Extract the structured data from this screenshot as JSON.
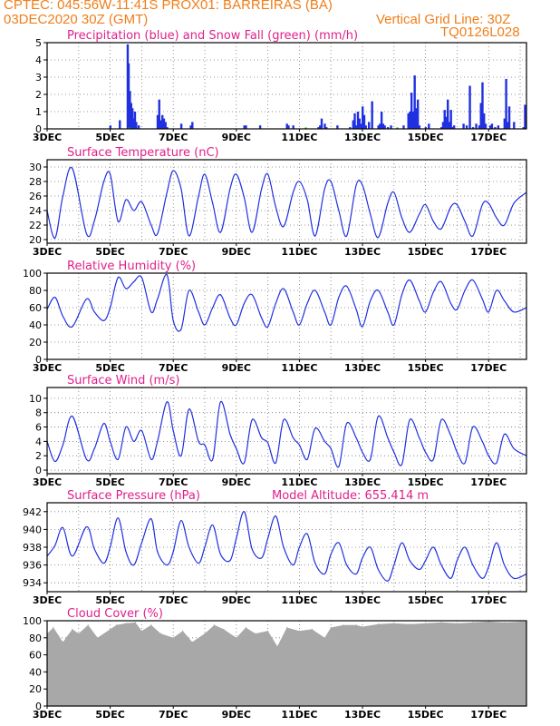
{
  "header": {
    "line1": "CPTEC:   045:56W-11:41S   PROX01: BARREIRAS (BA)",
    "line2": "03DEC2020 30Z (GMT)",
    "grid_note": "Vertical Grid Line: 30Z",
    "code": "TQ0126L028",
    "colors": {
      "header": "#f07e1a",
      "title": "#e0208a",
      "line": "#2030e0",
      "cloud": "#a8a8a8",
      "snow": "#10b010"
    }
  },
  "x_axis": {
    "start_day": 3,
    "end_day": 18.2,
    "grid_days": [
      3,
      4,
      5,
      6,
      7,
      8,
      9,
      10,
      11,
      12,
      13,
      14,
      15,
      16,
      17,
      18
    ],
    "tick_labels": [
      {
        "day": 3,
        "label": "3DEC"
      },
      {
        "day": 5,
        "label": "5DEC"
      },
      {
        "day": 7,
        "label": "7DEC"
      },
      {
        "day": 9,
        "label": "9DEC"
      },
      {
        "day": 11,
        "label": "11DEC"
      },
      {
        "day": 13,
        "label": "13DEC"
      },
      {
        "day": 15,
        "label": "15DEC"
      },
      {
        "day": 17,
        "label": "17DEC"
      }
    ]
  },
  "chart_data": [
    {
      "type": "bar",
      "title": "Precipitation (blue) and Snow Fall (green) (mm/h)",
      "ylim": [
        0,
        5
      ],
      "yticks": [
        "0",
        "1",
        "2",
        "3",
        "4",
        "5"
      ],
      "series": [
        {
          "name": "Precipitation",
          "x": [
            5.0,
            5.3,
            5.55,
            5.58,
            5.62,
            5.66,
            5.7,
            5.74,
            5.78,
            5.82,
            5.9,
            6.5,
            6.55,
            6.6,
            6.65,
            6.7,
            6.75,
            6.8,
            7.25,
            7.55,
            7.6,
            9.25,
            9.3,
            9.75,
            10.6,
            10.65,
            10.8,
            11.6,
            11.65,
            11.7,
            11.8,
            11.85,
            12.2,
            12.6,
            12.7,
            12.75,
            12.8,
            12.85,
            12.9,
            12.95,
            13.0,
            13.05,
            13.1,
            13.2,
            13.3,
            13.5,
            13.55,
            13.6,
            13.65,
            13.7,
            13.8,
            13.9,
            14.3,
            14.45,
            14.5,
            14.55,
            14.6,
            14.65,
            14.7,
            14.75,
            14.8,
            15.0,
            15.1,
            15.5,
            15.55,
            15.6,
            15.65,
            15.7,
            15.75,
            15.8,
            15.85,
            15.9,
            16.2,
            16.3,
            16.4,
            16.5,
            16.6,
            16.7,
            16.75,
            16.8,
            16.85,
            16.9,
            17.05,
            17.1,
            17.2,
            17.3,
            17.5,
            17.55,
            17.6,
            17.65,
            17.8,
            18.1,
            18.15
          ],
          "values": [
            0.2,
            0.5,
            4.9,
            3.8,
            2.2,
            1.5,
            1.2,
            0.6,
            1.0,
            0.4,
            0.2,
            0.8,
            1.7,
            0.5,
            0.8,
            0.6,
            0.4,
            0.1,
            0.3,
            0.2,
            0.4,
            0.2,
            0.2,
            0.2,
            0.3,
            0.2,
            0.2,
            0.1,
            0.2,
            0.6,
            0.3,
            0.1,
            0.2,
            0.1,
            0.5,
            0.9,
            0.2,
            1.0,
            0.6,
            0.3,
            1.3,
            0.8,
            0.2,
            0.4,
            1.6,
            0.2,
            0.3,
            1.0,
            0.3,
            0.2,
            0.1,
            0.2,
            0.2,
            0.9,
            1.0,
            2.1,
            1.0,
            3.1,
            1.2,
            1.7,
            0.2,
            0.1,
            0.3,
            0.1,
            0.4,
            1.1,
            0.7,
            1.7,
            0.4,
            1.1,
            0.1,
            0.2,
            0.3,
            0.2,
            2.5,
            0.1,
            0.3,
            0.2,
            1.5,
            2.7,
            0.9,
            0.3,
            0.2,
            0.3,
            0.1,
            0.2,
            0.6,
            2.9,
            0.4,
            1.3,
            0.4,
            0.1,
            1.4
          ]
        },
        {
          "name": "Snow Fall",
          "x": [
            5.6,
            11.2,
            14.1
          ],
          "values": [
            0.05,
            0.05,
            0.05
          ]
        }
      ]
    },
    {
      "type": "line",
      "title": "Surface Temperature (nC)",
      "ylim": [
        19.5,
        31
      ],
      "yticks": [
        "20",
        "22",
        "24",
        "26",
        "28",
        "30"
      ],
      "series": [
        {
          "name": "Temperature",
          "x": [
            3.0,
            3.25,
            3.5,
            3.8,
            4.25,
            4.5,
            4.8,
            5.0,
            5.25,
            5.5,
            5.75,
            6.0,
            6.3,
            6.5,
            6.8,
            7.0,
            7.25,
            7.5,
            7.8,
            8.0,
            8.25,
            8.5,
            8.8,
            9.0,
            9.25,
            9.5,
            9.8,
            10.0,
            10.25,
            10.5,
            10.8,
            11.0,
            11.25,
            11.5,
            11.8,
            12.0,
            12.25,
            12.5,
            12.8,
            13.0,
            13.25,
            13.5,
            13.8,
            14.0,
            14.25,
            14.5,
            14.8,
            15.0,
            15.25,
            15.5,
            15.8,
            16.0,
            16.25,
            16.5,
            16.8,
            17.0,
            17.25,
            17.5,
            17.8,
            18.2
          ],
          "values": [
            24.0,
            20.2,
            26.0,
            29.8,
            20.8,
            22.6,
            28.0,
            29.0,
            22.5,
            25.5,
            24.0,
            25.2,
            22.0,
            20.8,
            26.5,
            29.5,
            27.0,
            20.5,
            26.0,
            29.0,
            25.0,
            21.0,
            27.0,
            29.0,
            25.8,
            21.0,
            27.0,
            29.0,
            24.5,
            21.8,
            26.5,
            28.0,
            25.5,
            20.5,
            27.0,
            28.0,
            24.0,
            20.5,
            27.5,
            27.5,
            23.5,
            20.3,
            25.0,
            26.5,
            23.0,
            21.0,
            23.5,
            24.8,
            22.5,
            21.5,
            24.5,
            24.8,
            22.5,
            20.5,
            24.8,
            25.0,
            23.0,
            22.0,
            25.0,
            26.5
          ]
        }
      ]
    },
    {
      "type": "line",
      "title": "Relative Humidity (%)",
      "ylim": [
        0,
        100
      ],
      "yticks": [
        "0",
        "20",
        "40",
        "60",
        "80",
        "100"
      ],
      "series": [
        {
          "name": "Relative Humidity",
          "x": [
            3.0,
            3.25,
            3.5,
            3.8,
            4.25,
            4.5,
            4.8,
            5.0,
            5.25,
            5.5,
            5.75,
            6.0,
            6.3,
            6.5,
            6.8,
            7.0,
            7.25,
            7.5,
            7.8,
            8.0,
            8.25,
            8.5,
            8.8,
            9.0,
            9.25,
            9.5,
            9.8,
            10.0,
            10.25,
            10.5,
            10.8,
            11.0,
            11.25,
            11.5,
            11.8,
            12.0,
            12.25,
            12.5,
            12.8,
            13.0,
            13.25,
            13.5,
            13.8,
            14.0,
            14.25,
            14.5,
            14.8,
            15.0,
            15.25,
            15.5,
            15.8,
            16.0,
            16.25,
            16.5,
            16.8,
            17.0,
            17.25,
            17.5,
            17.8,
            18.2
          ],
          "values": [
            58,
            72,
            50,
            38,
            70,
            55,
            45,
            60,
            95,
            82,
            90,
            95,
            55,
            70,
            98,
            45,
            35,
            80,
            55,
            40,
            60,
            75,
            48,
            40,
            65,
            75,
            48,
            38,
            65,
            82,
            55,
            40,
            65,
            80,
            55,
            40,
            72,
            85,
            58,
            38,
            68,
            80,
            55,
            40,
            75,
            92,
            68,
            55,
            78,
            90,
            65,
            58,
            80,
            92,
            70,
            55,
            80,
            68,
            55,
            60
          ]
        }
      ]
    },
    {
      "type": "line",
      "title": "Surface Wind (m/s)",
      "ylim": [
        -0.5,
        11.5
      ],
      "yticks": [
        "0",
        "2",
        "4",
        "6",
        "8",
        "10"
      ],
      "series": [
        {
          "name": "Wind speed",
          "x": [
            3.0,
            3.25,
            3.5,
            3.8,
            4.25,
            4.5,
            4.8,
            5.0,
            5.25,
            5.5,
            5.75,
            6.0,
            6.3,
            6.5,
            6.8,
            7.0,
            7.25,
            7.5,
            7.8,
            8.0,
            8.25,
            8.5,
            8.8,
            9.0,
            9.25,
            9.5,
            9.8,
            10.0,
            10.25,
            10.5,
            10.8,
            11.0,
            11.25,
            11.5,
            11.8,
            12.0,
            12.25,
            12.5,
            12.8,
            13.0,
            13.25,
            13.5,
            13.8,
            14.0,
            14.25,
            14.5,
            14.8,
            15.0,
            15.25,
            15.5,
            15.8,
            16.0,
            16.25,
            16.5,
            16.8,
            17.0,
            17.25,
            17.5,
            17.8,
            18.2
          ],
          "values": [
            4.0,
            1.2,
            3.5,
            7.5,
            1.5,
            3.0,
            6.5,
            4.0,
            1.5,
            6.0,
            4.0,
            5.5,
            1.5,
            4.0,
            9.5,
            5.5,
            2.0,
            8.5,
            4.0,
            3.5,
            1.5,
            9.5,
            5.0,
            3.0,
            1.0,
            7.0,
            4.5,
            3.8,
            1.0,
            7.0,
            4.5,
            3.5,
            1.5,
            5.8,
            4.0,
            3.0,
            0.5,
            6.5,
            4.5,
            2.5,
            1.5,
            7.5,
            4.5,
            2.5,
            0.8,
            7.0,
            4.5,
            2.5,
            1.5,
            7.0,
            4.8,
            2.5,
            1.0,
            6.0,
            4.0,
            2.0,
            1.0,
            5.0,
            3.0,
            2.0
          ]
        }
      ]
    },
    {
      "type": "line",
      "title": "Surface Pressure (hPa)",
      "annotation": "Model Altitude: 655.414 m",
      "ylim": [
        933,
        943
      ],
      "yticks": [
        "934",
        "936",
        "938",
        "940",
        "942"
      ],
      "series": [
        {
          "name": "Surface Pressure",
          "x": [
            3.0,
            3.25,
            3.5,
            3.8,
            4.25,
            4.5,
            4.8,
            5.0,
            5.25,
            5.5,
            5.75,
            6.0,
            6.3,
            6.5,
            6.8,
            7.0,
            7.25,
            7.5,
            7.8,
            8.0,
            8.25,
            8.5,
            8.8,
            9.0,
            9.25,
            9.5,
            9.8,
            10.0,
            10.25,
            10.5,
            10.8,
            11.0,
            11.25,
            11.5,
            11.8,
            12.0,
            12.25,
            12.5,
            12.8,
            13.0,
            13.25,
            13.5,
            13.8,
            14.0,
            14.25,
            14.5,
            14.8,
            15.0,
            15.25,
            15.5,
            15.8,
            16.0,
            16.25,
            16.5,
            16.8,
            17.0,
            17.25,
            17.5,
            17.8,
            18.2
          ],
          "values": [
            937.0,
            938.2,
            940.2,
            937.0,
            940.3,
            937.8,
            936.2,
            938.0,
            941.3,
            937.5,
            936.0,
            938.5,
            941.2,
            937.5,
            936.0,
            937.5,
            941.0,
            938.0,
            936.2,
            938.0,
            940.5,
            937.2,
            936.5,
            939.0,
            942.0,
            937.8,
            936.8,
            939.0,
            941.5,
            938.0,
            936.0,
            938.0,
            939.5,
            936.2,
            935.0,
            937.2,
            938.5,
            936.0,
            935.0,
            936.8,
            938.0,
            935.5,
            934.2,
            936.0,
            938.5,
            936.5,
            935.5,
            936.5,
            938.0,
            936.0,
            934.5,
            936.5,
            938.0,
            936.0,
            934.5,
            935.8,
            938.5,
            936.0,
            934.5,
            935.0
          ]
        }
      ]
    },
    {
      "type": "area",
      "title": "Cloud Cover (%)",
      "ylim": [
        0,
        100
      ],
      "yticks": [
        "0",
        "20",
        "40",
        "60",
        "80",
        "100"
      ],
      "series": [
        {
          "name": "Cloud Cover",
          "x": [
            3.0,
            3.2,
            3.5,
            3.8,
            4.0,
            4.3,
            4.6,
            5.0,
            5.2,
            5.5,
            5.8,
            6.0,
            6.3,
            6.6,
            7.0,
            7.3,
            7.6,
            8.0,
            8.3,
            8.6,
            9.0,
            9.3,
            9.6,
            10.0,
            10.3,
            10.6,
            11.0,
            11.4,
            11.8,
            12.0,
            12.4,
            12.8,
            13.0,
            13.5,
            14.0,
            14.5,
            15.0,
            15.5,
            16.0,
            16.5,
            17.0,
            17.5,
            18.2
          ],
          "values": [
            85,
            92,
            75,
            90,
            85,
            95,
            80,
            90,
            95,
            97,
            98,
            88,
            95,
            85,
            80,
            88,
            75,
            85,
            95,
            90,
            80,
            92,
            85,
            88,
            70,
            92,
            88,
            90,
            80,
            92,
            95,
            95,
            93,
            96,
            97,
            96,
            97,
            98,
            97,
            98,
            99,
            98,
            99
          ]
        }
      ]
    }
  ]
}
